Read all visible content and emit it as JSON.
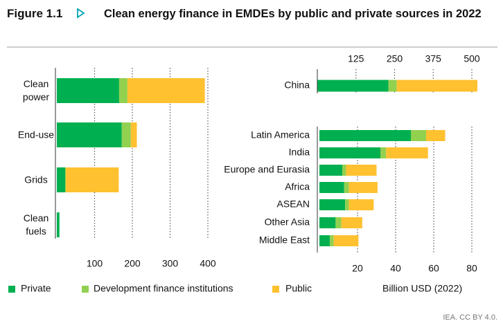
{
  "figure_label": "Figure 1.1",
  "title": "Clean energy finance in EMDEs by public and private sources in 2022",
  "unit": "Billion USD (2022)",
  "source": "IEA. CC BY 4.0.",
  "chart_data": [
    {
      "type": "bar",
      "orientation": "horizontal",
      "categories": [
        "Clean power",
        "End-use",
        "Grids",
        "Clean fuels"
      ],
      "series": [
        {
          "name": "Private",
          "color": "#00b050",
          "values": [
            165,
            172,
            22,
            7
          ]
        },
        {
          "name": "Development finance institutions",
          "color": "#92d050",
          "values": [
            22,
            24,
            2,
            0
          ]
        },
        {
          "name": "Public",
          "color": "#ffc130",
          "values": [
            205,
            16,
            140,
            0
          ]
        }
      ],
      "xlim": [
        0,
        400
      ],
      "xticks": [
        100,
        200,
        300,
        400
      ],
      "xaxis_position": "bottom",
      "grid": true
    },
    {
      "type": "bar",
      "orientation": "horizontal",
      "categories": [
        "China"
      ],
      "series": [
        {
          "color": "#00b050",
          "values": [
            230
          ]
        },
        {
          "color": "#92d050",
          "values": [
            27
          ]
        },
        {
          "color": "#ffc130",
          "values": [
            261
          ]
        }
      ],
      "xlim": [
        0,
        500
      ],
      "xticks": [
        125,
        250,
        375,
        500
      ],
      "xaxis_position": "top",
      "grid": true
    },
    {
      "type": "bar",
      "orientation": "horizontal",
      "categories": [
        "Latin America",
        "India",
        "Europe and Eurasia",
        "Africa",
        "ASEAN",
        "Other Asia",
        "Middle East"
      ],
      "series": [
        {
          "color": "#00b050",
          "values": [
            48,
            32,
            12,
            13,
            13.5,
            8.5,
            5.5
          ]
        },
        {
          "color": "#92d050",
          "values": [
            8,
            3,
            2,
            2.5,
            2,
            3,
            2
          ]
        },
        {
          "color": "#ffc130",
          "values": [
            10,
            22,
            16,
            15,
            13,
            11,
            13
          ]
        }
      ],
      "xlim": [
        0,
        80
      ],
      "xticks": [
        20,
        40,
        60,
        80
      ],
      "xaxis_position": "bottom",
      "grid": true
    }
  ]
}
